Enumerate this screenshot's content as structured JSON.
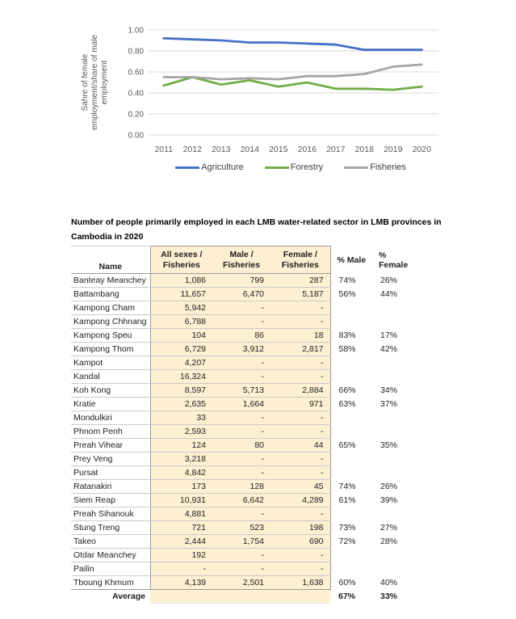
{
  "chart_data": {
    "type": "line",
    "x": [
      "2011",
      "2012",
      "2013",
      "2014",
      "2015",
      "2016",
      "2017",
      "2018",
      "2019",
      "2020"
    ],
    "series": [
      {
        "name": "Agriculture",
        "color": "#4472C4",
        "values": [
          0.92,
          0.91,
          0.9,
          0.88,
          0.88,
          0.87,
          0.86,
          0.81,
          0.81,
          0.81
        ]
      },
      {
        "name": "Forestry",
        "color": "#70AD47",
        "values": [
          0.47,
          0.55,
          0.48,
          0.52,
          0.46,
          0.5,
          0.44,
          0.44,
          0.43,
          0.46
        ]
      },
      {
        "name": "Fisheries",
        "color": "#A5A5A5",
        "values": [
          0.55,
          0.55,
          0.53,
          0.54,
          0.53,
          0.56,
          0.56,
          0.58,
          0.65,
          0.67
        ]
      }
    ],
    "title": "",
    "xlabel": "",
    "ylabel": "Sahre of female employment/share of male employment",
    "ylim": [
      0,
      1.0
    ],
    "yticks": [
      "0.00",
      "0.20",
      "0.40",
      "0.60",
      "0.80",
      "1.00"
    ],
    "grid": true,
    "legend_position": "bottom"
  },
  "table": {
    "title": "Number of people primarily employed in each LMB water-related sector in LMB provinces in\nCambodia in 2020",
    "headers": [
      "Name",
      "All sexes /\nFisheries",
      "Male /\nFisheries",
      "Female /\nFisheries",
      "% Male",
      "% Female"
    ],
    "rows": [
      [
        "Banteay Meanchey",
        "1,086",
        "799",
        "287",
        "74%",
        "26%"
      ],
      [
        "Battambang",
        "11,657",
        "6,470",
        "5,187",
        "56%",
        "44%"
      ],
      [
        "Kampong Cham",
        "5,942",
        "-",
        "-",
        "",
        ""
      ],
      [
        "Kampong Chhnang",
        "6,788",
        "-",
        "-",
        "",
        ""
      ],
      [
        "Kampong Speu",
        "104",
        "86",
        "18",
        "83%",
        "17%"
      ],
      [
        "Kampong Thom",
        "6,729",
        "3,912",
        "2,817",
        "58%",
        "42%"
      ],
      [
        "Kampot",
        "4,207",
        "-",
        "-",
        "",
        ""
      ],
      [
        "Kandal",
        "16,324",
        "-",
        "-",
        "",
        ""
      ],
      [
        "Koh Kong",
        "8,597",
        "5,713",
        "2,884",
        "66%",
        "34%"
      ],
      [
        "Kratie",
        "2,635",
        "1,664",
        "971",
        "63%",
        "37%"
      ],
      [
        "Mondulkiri",
        "33",
        "-",
        "-",
        "",
        ""
      ],
      [
        "Phnom Penh",
        "2,593",
        "-",
        "-",
        "",
        ""
      ],
      [
        "Preah Vihear",
        "124",
        "80",
        "44",
        "65%",
        "35%"
      ],
      [
        "Prey Veng",
        "3,218",
        "-",
        "-",
        "",
        ""
      ],
      [
        "Pursat",
        "4,842",
        "-",
        "-",
        "",
        ""
      ],
      [
        "Ratanakiri",
        "173",
        "128",
        "45",
        "74%",
        "26%"
      ],
      [
        "Siem Reap",
        "10,931",
        "6,642",
        "4,289",
        "61%",
        "39%"
      ],
      [
        "Preah Sihanouk",
        "4,881",
        "-",
        "-",
        "",
        ""
      ],
      [
        "Stung Treng",
        "721",
        "523",
        "198",
        "73%",
        "27%"
      ],
      [
        "Takeo",
        "2,444",
        "1,754",
        "690",
        "72%",
        "28%"
      ],
      [
        "Otdar Meanchey",
        "192",
        "-",
        "-",
        "",
        ""
      ],
      [
        "Pailin",
        "-",
        "-",
        "-",
        "",
        ""
      ],
      [
        "Tboung Khmum",
        "4,139",
        "2,501",
        "1,638",
        "60%",
        "40%"
      ]
    ],
    "average": {
      "label": "Average",
      "male_pct": "67%",
      "female_pct": "33%"
    }
  },
  "colors": {
    "table_highlight": "#FCEFD2",
    "gridline": "#D9D9D9",
    "axis_text": "#595959"
  }
}
